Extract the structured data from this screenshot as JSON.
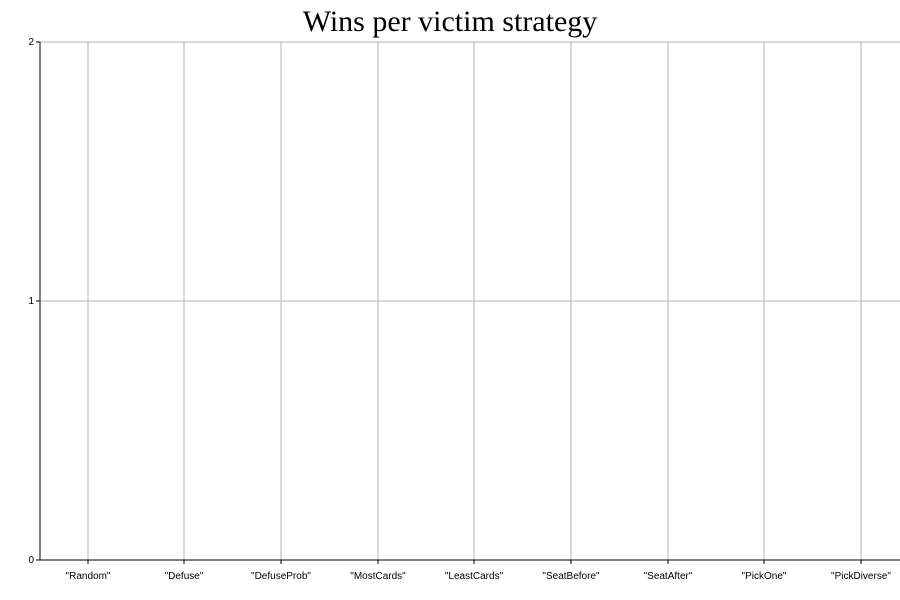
{
  "chart_data": {
    "type": "bar",
    "title": "Wins per victim strategy",
    "xlabel": "",
    "ylabel": "",
    "categories": [
      "\"Random\"",
      "\"Defuse\"",
      "\"DefuseProb\"",
      "\"MostCards\"",
      "\"LeastCards\"",
      "\"SeatBefore\"",
      "\"SeatAfter\"",
      "\"PickOne\"",
      "\"PickDiverse\""
    ],
    "values": [
      0,
      0,
      0,
      0,
      0,
      0,
      0,
      0,
      0
    ],
    "ylim": [
      0,
      2
    ],
    "yticks": [
      0,
      1,
      2
    ],
    "grid": true,
    "legend": "none",
    "colors": {
      "grid": "#b4b4b4",
      "axis": "#000000",
      "text": "#000000",
      "bar": "#4a7ebb"
    }
  }
}
